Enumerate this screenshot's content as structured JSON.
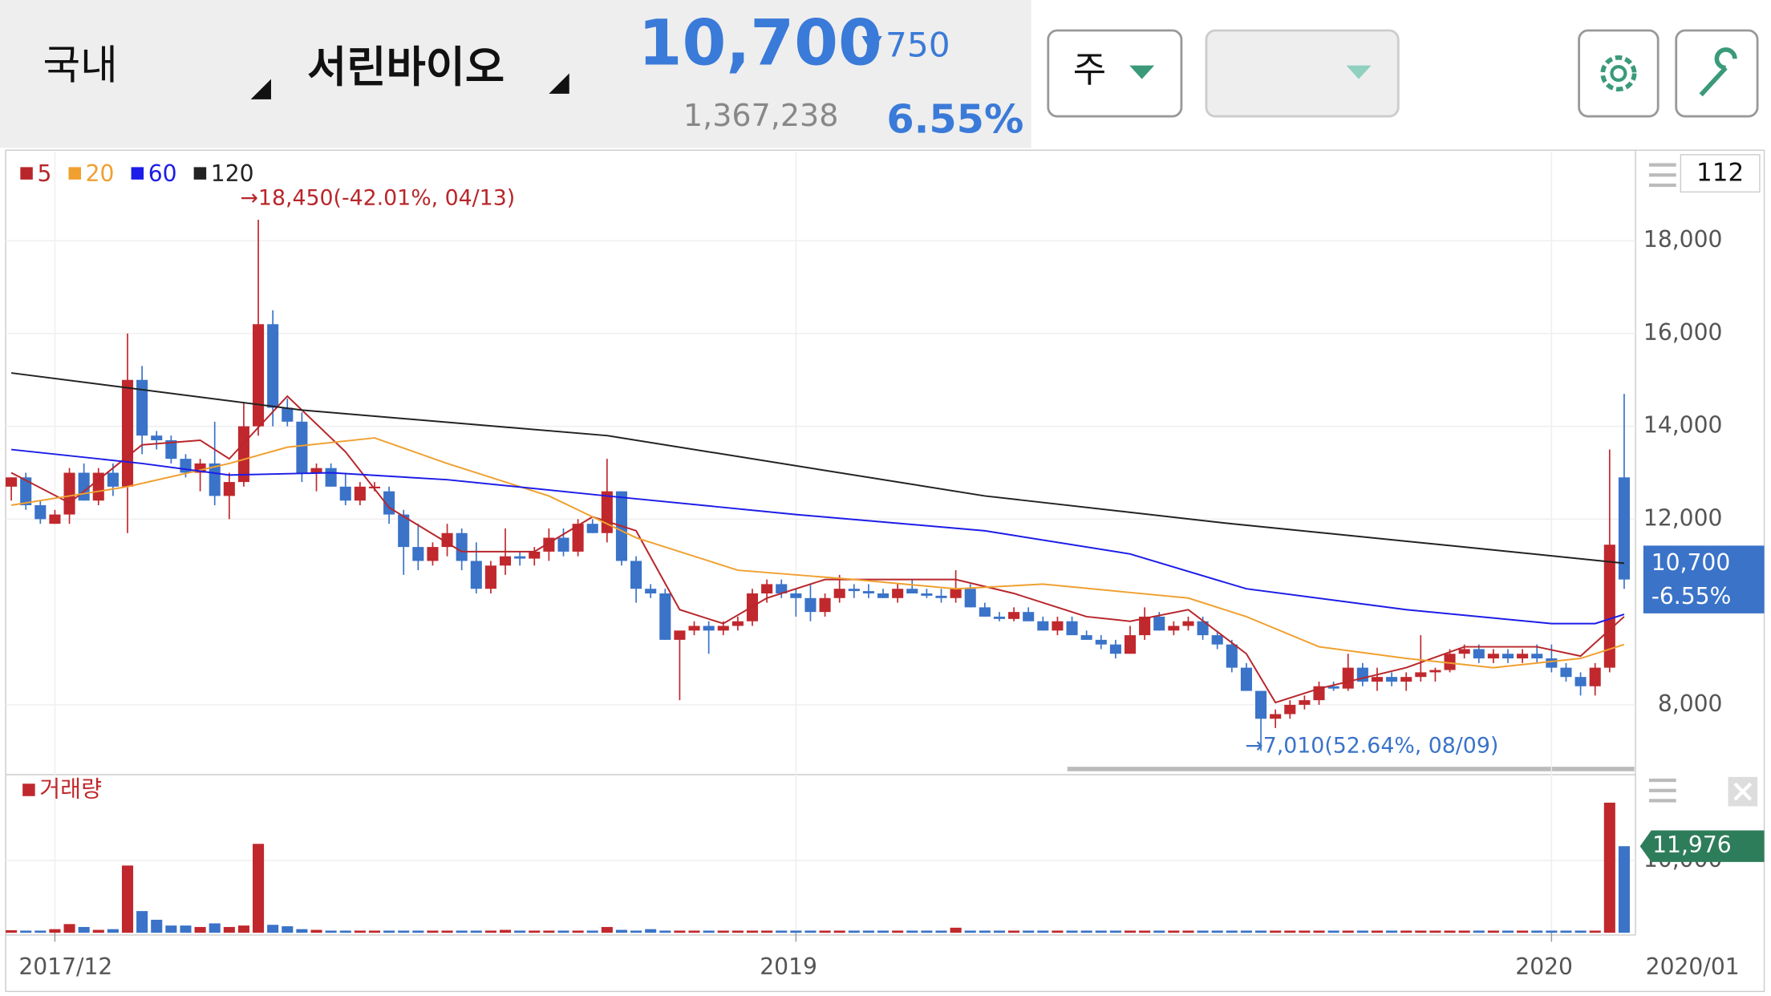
{
  "header": {
    "market": "국내",
    "stock": "서린바이오",
    "price": "10,700",
    "change": "750",
    "volume": "1,367,238",
    "rate": "6.55%",
    "period": "주",
    "count": "112"
  },
  "chart_data": [
    {
      "type": "candlestick",
      "legend": [
        {
          "name": "5",
          "color": "#b8262b"
        },
        {
          "name": "20",
          "color": "#f0a030"
        },
        {
          "name": "60",
          "color": "#1c1ce8"
        },
        {
          "name": "120",
          "color": "#222222"
        }
      ],
      "up_color": "#c0282d",
      "down_color": "#3a73c8",
      "candles": [
        [
          12700,
          12900,
          12400,
          12900
        ],
        [
          12900,
          13000,
          12200,
          12300
        ],
        [
          12300,
          12400,
          11900,
          12000
        ],
        [
          11900,
          12200,
          11900,
          12100
        ],
        [
          12100,
          13100,
          11900,
          13000
        ],
        [
          13000,
          13200,
          12400,
          12400
        ],
        [
          12400,
          13100,
          12300,
          13000
        ],
        [
          13000,
          13200,
          12500,
          12700
        ],
        [
          12700,
          16000,
          11700,
          15000
        ],
        [
          15000,
          15300,
          13400,
          13800
        ],
        [
          13800,
          13900,
          13500,
          13700
        ],
        [
          13700,
          13800,
          13200,
          13300
        ],
        [
          13300,
          13400,
          12900,
          13000
        ],
        [
          13000,
          13300,
          12600,
          13200
        ],
        [
          13200,
          14100,
          12300,
          12500
        ],
        [
          12500,
          13000,
          12000,
          12800
        ],
        [
          12800,
          14500,
          12700,
          14000
        ],
        [
          14000,
          18450,
          13800,
          16200
        ],
        [
          16200,
          16500,
          14000,
          14400
        ],
        [
          14400,
          14600,
          14000,
          14100
        ],
        [
          14100,
          14300,
          12800,
          13000
        ],
        [
          13000,
          13200,
          12600,
          13100
        ],
        [
          13100,
          13200,
          12700,
          12700
        ],
        [
          12700,
          13000,
          12300,
          12400
        ],
        [
          12400,
          12800,
          12300,
          12700
        ],
        [
          12700,
          12800,
          12600,
          12700
        ],
        [
          12600,
          12700,
          11900,
          12100
        ],
        [
          12100,
          12200,
          10800,
          11400
        ],
        [
          11400,
          11900,
          10900,
          11100
        ],
        [
          11100,
          11500,
          11000,
          11400
        ],
        [
          11400,
          11900,
          11200,
          11700
        ],
        [
          11700,
          11800,
          10900,
          11100
        ],
        [
          11100,
          11500,
          10400,
          10500
        ],
        [
          10500,
          11100,
          10400,
          11000
        ],
        [
          11000,
          11800,
          10800,
          11200
        ],
        [
          11200,
          11300,
          11000,
          11150
        ],
        [
          11150,
          11400,
          11000,
          11300
        ],
        [
          11300,
          11800,
          11100,
          11600
        ],
        [
          11600,
          11800,
          11200,
          11300
        ],
        [
          11300,
          12000,
          11200,
          11900
        ],
        [
          11900,
          12000,
          11700,
          11700
        ],
        [
          11700,
          13300,
          11500,
          12600
        ],
        [
          12600,
          12600,
          11000,
          11100
        ],
        [
          11100,
          11200,
          10200,
          10500
        ],
        [
          10500,
          10600,
          10300,
          10400
        ],
        [
          10400,
          10500,
          9400,
          9400
        ],
        [
          9400,
          9500,
          8100,
          9600
        ],
        [
          9600,
          9800,
          9500,
          9700
        ],
        [
          9700,
          9800,
          9100,
          9600
        ],
        [
          9600,
          9800,
          9500,
          9700
        ],
        [
          9700,
          9900,
          9600,
          9800
        ],
        [
          9800,
          10500,
          9700,
          10400
        ],
        [
          10400,
          10700,
          10200,
          10600
        ],
        [
          10600,
          10700,
          10300,
          10400
        ],
        [
          10400,
          10500,
          9900,
          10300
        ],
        [
          10300,
          10600,
          9800,
          10000
        ],
        [
          10000,
          10400,
          9900,
          10300
        ],
        [
          10300,
          10800,
          10200,
          10500
        ],
        [
          10500,
          10600,
          10300,
          10450
        ],
        [
          10450,
          10600,
          10300,
          10400
        ],
        [
          10400,
          10500,
          10300,
          10300
        ],
        [
          10300,
          10600,
          10200,
          10500
        ],
        [
          10500,
          10700,
          10400,
          10400
        ],
        [
          10400,
          10500,
          10300,
          10350
        ],
        [
          10350,
          10500,
          10200,
          10300
        ],
        [
          10300,
          10900,
          10200,
          10500
        ],
        [
          10500,
          10600,
          10100,
          10100
        ],
        [
          10100,
          10200,
          9900,
          9900
        ],
        [
          9900,
          10000,
          9800,
          9850
        ],
        [
          9850,
          10100,
          9800,
          10000
        ],
        [
          10000,
          10100,
          9800,
          9800
        ],
        [
          9800,
          9900,
          9600,
          9600
        ],
        [
          9600,
          9900,
          9500,
          9800
        ],
        [
          9800,
          9900,
          9500,
          9500
        ],
        [
          9500,
          9600,
          9400,
          9400
        ],
        [
          9400,
          9500,
          9200,
          9300
        ],
        [
          9300,
          9400,
          9000,
          9100
        ],
        [
          9100,
          9700,
          9100,
          9500
        ],
        [
          9500,
          10100,
          9400,
          9900
        ],
        [
          9900,
          10000,
          9600,
          9600
        ],
        [
          9600,
          9800,
          9500,
          9700
        ],
        [
          9700,
          9900,
          9600,
          9800
        ],
        [
          9800,
          9900,
          9400,
          9500
        ],
        [
          9500,
          9600,
          9200,
          9300
        ],
        [
          9300,
          9400,
          8700,
          8800
        ],
        [
          8800,
          8900,
          8300,
          8300
        ],
        [
          8300,
          8300,
          7010,
          7700
        ],
        [
          7700,
          7900,
          7500,
          7800
        ],
        [
          7800,
          8100,
          7700,
          8000
        ],
        [
          8000,
          8200,
          7900,
          8100
        ],
        [
          8100,
          8500,
          8000,
          8400
        ],
        [
          8400,
          8500,
          8300,
          8350
        ],
        [
          8350,
          9100,
          8300,
          8800
        ],
        [
          8800,
          8900,
          8400,
          8500
        ],
        [
          8500,
          8800,
          8300,
          8600
        ],
        [
          8600,
          8700,
          8400,
          8500
        ],
        [
          8500,
          8700,
          8300,
          8600
        ],
        [
          8600,
          9500,
          8500,
          8700
        ],
        [
          8700,
          8800,
          8500,
          8750
        ],
        [
          8750,
          9200,
          8700,
          9100
        ],
        [
          9100,
          9300,
          9000,
          9200
        ],
        [
          9200,
          9300,
          8900,
          9000
        ],
        [
          9000,
          9200,
          8900,
          9100
        ],
        [
          9100,
          9200,
          8900,
          9000
        ],
        [
          9000,
          9200,
          8900,
          9100
        ],
        [
          9100,
          9300,
          8900,
          9000
        ],
        [
          9000,
          9300,
          8700,
          8800
        ],
        [
          8800,
          8900,
          8500,
          8600
        ],
        [
          8600,
          8700,
          8200,
          8400
        ],
        [
          8400,
          8900,
          8200,
          8800
        ],
        [
          8800,
          13500,
          8700,
          11450
        ],
        [
          12900,
          14700,
          10500,
          10700
        ]
      ],
      "ma": [
        {
          "name": "5",
          "color": "#b8262b",
          "x": [
            0,
            4,
            9,
            13,
            15,
            19,
            23,
            26,
            31,
            36,
            40,
            43,
            46,
            49,
            52,
            56,
            61,
            65,
            69,
            74,
            77,
            81,
            85,
            87,
            90,
            96,
            100,
            105,
            108,
            111
          ],
          "values": [
            13000,
            12350,
            13600,
            13700,
            13300,
            14650,
            13450,
            12250,
            11300,
            11300,
            12050,
            11750,
            10050,
            9750,
            10300,
            10700,
            10700,
            10700,
            10400,
            9900,
            9800,
            10050,
            9100,
            8050,
            8350,
            8800,
            9250,
            9250,
            9050,
            9900
          ]
        },
        {
          "name": "20",
          "color": "#f0a030",
          "x": [
            0,
            8,
            15,
            19,
            25,
            30,
            37,
            43,
            50,
            58,
            65,
            71,
            81,
            85,
            90,
            96,
            102,
            108,
            111
          ],
          "values": [
            12300,
            12700,
            13200,
            13550,
            13750,
            13200,
            12500,
            11600,
            10900,
            10700,
            10500,
            10600,
            10300,
            9900,
            9250,
            9000,
            8800,
            9000,
            9300
          ]
        },
        {
          "name": "60",
          "color": "#1c1ce8",
          "x": [
            0,
            9,
            15,
            22,
            30,
            41,
            54,
            67,
            77,
            85,
            96,
            106,
            109,
            111
          ],
          "values": [
            13500,
            13200,
            12950,
            13000,
            12850,
            12500,
            12100,
            11750,
            11250,
            10500,
            10050,
            9750,
            9750,
            9950
          ]
        },
        {
          "name": "120",
          "color": "#222222",
          "x": [
            0,
            20,
            41,
            67,
            84,
            100,
            111
          ],
          "values": [
            15150,
            14350,
            13800,
            12500,
            11900,
            11400,
            11050
          ]
        }
      ],
      "ylim": [
        6690,
        19900
      ],
      "yticks": [
        {
          "value": 8000,
          "label": "8,000"
        },
        {
          "value": 12000,
          "label": "12,000"
        },
        {
          "value": 14000,
          "label": "14,000"
        },
        {
          "value": 16000,
          "label": "16,000"
        },
        {
          "value": 18000,
          "label": "18,000"
        }
      ],
      "xticks": [
        {
          "value": 3,
          "label": "2017/12"
        },
        {
          "value": 54,
          "label": "2019"
        },
        {
          "value": 106,
          "label": "2020"
        }
      ],
      "period_label": "2020/01",
      "annotations": [
        {
          "text": "→18,450(-42.01%, 04/13)",
          "color": "#b8262b"
        },
        {
          "text": "→7,010(52.64%, 08/09)",
          "color": "#3a73c8"
        }
      ],
      "current_label": {
        "value": 10700,
        "label": "10,700",
        "change": "-6.55%"
      }
    },
    {
      "type": "bar",
      "title": "거래량",
      "color": "#c0282d",
      "values": [
        350,
        300,
        300,
        500,
        1200,
        800,
        400,
        500,
        9300,
        3000,
        1800,
        1000,
        1000,
        800,
        1300,
        800,
        1000,
        12300,
        1100,
        900,
        500,
        400,
        300,
        300,
        300,
        300,
        300,
        300,
        300,
        300,
        300,
        300,
        300,
        300,
        400,
        300,
        300,
        300,
        300,
        300,
        300,
        800,
        400,
        300,
        500,
        300,
        300,
        300,
        300,
        300,
        300,
        300,
        300,
        300,
        300,
        300,
        300,
        300,
        300,
        300,
        300,
        300,
        300,
        300,
        300,
        700,
        300,
        300,
        300,
        300,
        300,
        300,
        300,
        300,
        300,
        300,
        300,
        300,
        300,
        300,
        300,
        300,
        300,
        300,
        300,
        300,
        300,
        300,
        300,
        300,
        300,
        300,
        300,
        300,
        300,
        300,
        300,
        300,
        300,
        300,
        300,
        300,
        300,
        300,
        300,
        300,
        300,
        300,
        300,
        300,
        18000,
        11976
      ],
      "ylim": [
        0,
        21560
      ],
      "yticks": [
        {
          "value": 10000,
          "label": "10,000"
        }
      ],
      "current_label": {
        "value": 11976,
        "label": "11,976"
      }
    }
  ]
}
